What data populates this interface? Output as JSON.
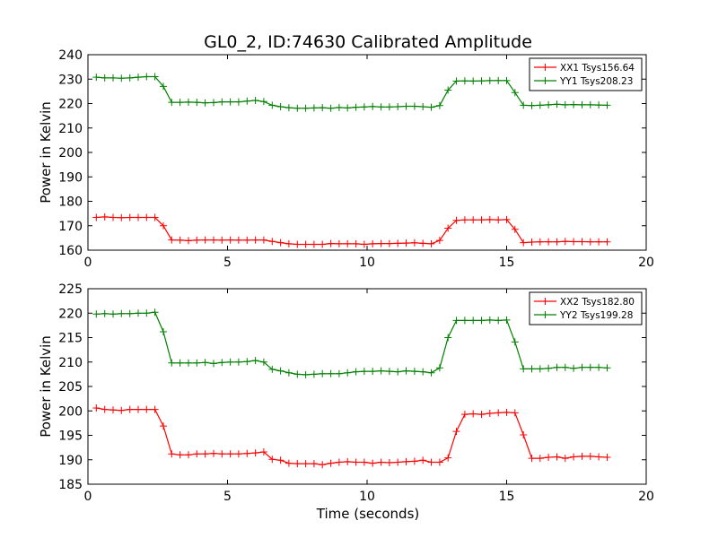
{
  "title": "GL0_2, ID:74630 Calibrated Amplitude",
  "xlabel": "Time (seconds)",
  "chart_data": [
    {
      "type": "line",
      "xlabel": "",
      "ylabel": "Power in Kelvin",
      "xlim": [
        0,
        20
      ],
      "ylim": [
        160,
        240
      ],
      "xticks": [
        0,
        5,
        10,
        15,
        20
      ],
      "yticks": [
        160,
        170,
        180,
        190,
        200,
        210,
        220,
        230,
        240
      ],
      "legend_position": "top-right",
      "grid": false,
      "x": [
        0.3,
        0.6,
        0.9,
        1.2,
        1.5,
        1.8,
        2.1,
        2.4,
        2.7,
        3.0,
        3.3,
        3.6,
        3.9,
        4.2,
        4.5,
        4.8,
        5.1,
        5.4,
        5.7,
        6.0,
        6.3,
        6.6,
        6.9,
        7.2,
        7.5,
        7.8,
        8.1,
        8.4,
        8.7,
        9.0,
        9.3,
        9.6,
        9.9,
        10.2,
        10.5,
        10.8,
        11.1,
        11.4,
        11.7,
        12.0,
        12.3,
        12.6,
        12.9,
        13.2,
        13.5,
        13.8,
        14.1,
        14.4,
        14.7,
        15.0,
        15.3,
        15.6,
        15.9,
        16.2,
        16.5,
        16.8,
        17.1,
        17.4,
        17.7,
        18.0,
        18.3,
        18.6
      ],
      "series": [
        {
          "name": "XX1 Tsys156.64",
          "color": "#ff0000",
          "values": [
            173.4,
            173.6,
            173.4,
            173.3,
            173.4,
            173.4,
            173.4,
            173.4,
            170.0,
            164.2,
            164.1,
            163.9,
            164.1,
            164.2,
            164.2,
            164.1,
            164.2,
            164.1,
            164.1,
            164.2,
            164.2,
            163.6,
            163.1,
            162.6,
            162.4,
            162.4,
            162.4,
            162.4,
            162.7,
            162.6,
            162.6,
            162.6,
            162.4,
            162.6,
            162.7,
            162.7,
            162.8,
            162.9,
            163.0,
            162.8,
            162.6,
            164.0,
            169.0,
            172.2,
            172.4,
            172.4,
            172.4,
            172.5,
            172.4,
            172.5,
            168.5,
            163.1,
            163.3,
            163.4,
            163.4,
            163.4,
            163.6,
            163.5,
            163.5,
            163.4,
            163.4,
            163.4
          ]
        },
        {
          "name": "YY1 Tsys208.23",
          "color": "#008000",
          "values": [
            230.8,
            230.5,
            230.5,
            230.4,
            230.5,
            230.8,
            231.0,
            231.0,
            227.0,
            220.5,
            220.5,
            220.6,
            220.5,
            220.3,
            220.4,
            220.7,
            220.7,
            220.7,
            221.0,
            221.3,
            220.8,
            219.3,
            218.7,
            218.3,
            218.1,
            218.1,
            218.2,
            218.3,
            218.1,
            218.4,
            218.2,
            218.5,
            218.6,
            218.8,
            218.6,
            218.6,
            218.7,
            218.9,
            218.9,
            218.7,
            218.5,
            219.2,
            225.5,
            229.2,
            229.3,
            229.2,
            229.3,
            229.4,
            229.4,
            229.4,
            224.5,
            219.3,
            219.2,
            219.3,
            219.5,
            219.7,
            219.5,
            219.6,
            219.5,
            219.5,
            219.4,
            219.3
          ]
        }
      ]
    },
    {
      "type": "line",
      "xlabel": "Time (seconds)",
      "ylabel": "Power in Kelvin",
      "xlim": [
        0,
        20
      ],
      "ylim": [
        185,
        225
      ],
      "xticks": [
        0,
        5,
        10,
        15,
        20
      ],
      "yticks": [
        185,
        190,
        195,
        200,
        205,
        210,
        215,
        220,
        225
      ],
      "legend_position": "top-right",
      "grid": false,
      "x": [
        0.3,
        0.6,
        0.9,
        1.2,
        1.5,
        1.8,
        2.1,
        2.4,
        2.7,
        3.0,
        3.3,
        3.6,
        3.9,
        4.2,
        4.5,
        4.8,
        5.1,
        5.4,
        5.7,
        6.0,
        6.3,
        6.6,
        6.9,
        7.2,
        7.5,
        7.8,
        8.1,
        8.4,
        8.7,
        9.0,
        9.3,
        9.6,
        9.9,
        10.2,
        10.5,
        10.8,
        11.1,
        11.4,
        11.7,
        12.0,
        12.3,
        12.6,
        12.9,
        13.2,
        13.5,
        13.8,
        14.1,
        14.4,
        14.7,
        15.0,
        15.3,
        15.6,
        15.9,
        16.2,
        16.5,
        16.8,
        17.1,
        17.4,
        17.7,
        18.0,
        18.3,
        18.6
      ],
      "series": [
        {
          "name": "XX2 Tsys182.80",
          "color": "#ff0000",
          "values": [
            200.6,
            200.3,
            200.2,
            200.1,
            200.3,
            200.3,
            200.3,
            200.3,
            196.9,
            191.2,
            191.0,
            191.0,
            191.2,
            191.2,
            191.3,
            191.2,
            191.2,
            191.2,
            191.3,
            191.4,
            191.6,
            190.1,
            189.9,
            189.3,
            189.2,
            189.2,
            189.2,
            189.0,
            189.3,
            189.5,
            189.6,
            189.5,
            189.5,
            189.3,
            189.5,
            189.4,
            189.5,
            189.6,
            189.7,
            189.9,
            189.5,
            189.5,
            190.4,
            195.8,
            199.3,
            199.4,
            199.3,
            199.5,
            199.6,
            199.7,
            199.6,
            195.1,
            190.3,
            190.3,
            190.5,
            190.6,
            190.3,
            190.6,
            190.7,
            190.7,
            190.6,
            190.5
          ]
        },
        {
          "name": "YY2 Tsys199.28",
          "color": "#008000",
          "values": [
            219.8,
            219.9,
            219.8,
            219.9,
            219.9,
            220.0,
            220.0,
            220.2,
            216.2,
            209.8,
            209.8,
            209.8,
            209.8,
            209.9,
            209.7,
            209.9,
            210.0,
            210.0,
            210.1,
            210.3,
            210.0,
            208.5,
            208.2,
            207.8,
            207.5,
            207.4,
            207.5,
            207.6,
            207.6,
            207.6,
            207.8,
            208.0,
            208.1,
            208.1,
            208.2,
            208.1,
            208.0,
            208.2,
            208.1,
            208.0,
            207.8,
            208.8,
            215.0,
            218.5,
            218.5,
            218.5,
            218.5,
            218.6,
            218.5,
            218.6,
            214.1,
            208.6,
            208.6,
            208.6,
            208.7,
            208.9,
            208.9,
            208.7,
            208.9,
            208.9,
            208.9,
            208.8
          ]
        }
      ]
    }
  ]
}
